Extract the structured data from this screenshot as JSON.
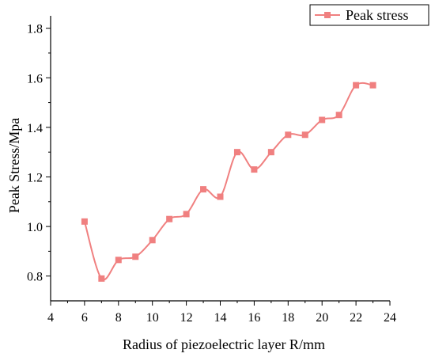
{
  "chart_data": {
    "type": "line",
    "xlabel": "Radius of piezoelectric layer R/mm",
    "ylabel": "Peak Stress/Mpa",
    "xlim": [
      4,
      24
    ],
    "ylim": [
      0.7,
      1.85
    ],
    "xticks": [
      4,
      6,
      8,
      10,
      12,
      14,
      16,
      18,
      20,
      22,
      24
    ],
    "yticks": [
      0.8,
      1.0,
      1.2,
      1.4,
      1.6,
      1.8
    ],
    "ytick_labels": [
      "0.8",
      "1.0",
      "1.2",
      "1.4",
      "1.6",
      "1.8"
    ],
    "grid": false,
    "legend_position": "top-right",
    "series": [
      {
        "name": "Peak stress",
        "color": "#f08080",
        "marker": "square",
        "smooth": true,
        "x": [
          6,
          7,
          8,
          9,
          10,
          11,
          12,
          13,
          14,
          15,
          16,
          17,
          18,
          19,
          20,
          21,
          22,
          23
        ],
        "values": [
          1.02,
          0.79,
          0.865,
          0.878,
          0.945,
          1.03,
          1.05,
          1.15,
          1.12,
          1.3,
          1.23,
          1.3,
          1.37,
          1.37,
          1.43,
          1.45,
          1.57,
          1.57
        ]
      }
    ]
  }
}
